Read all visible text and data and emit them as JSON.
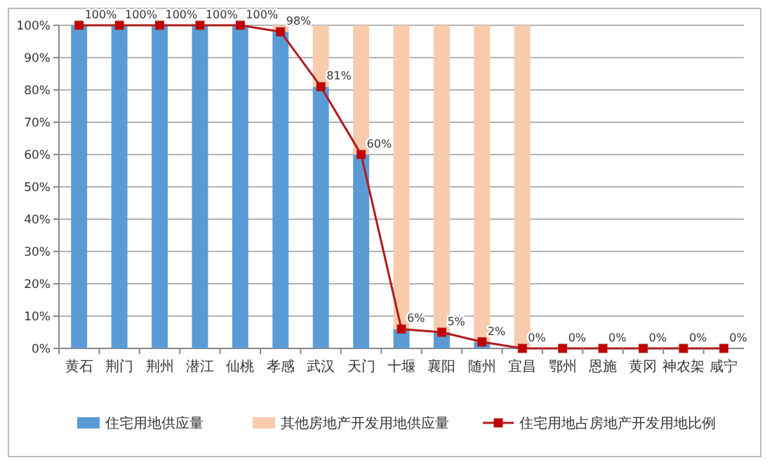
{
  "chart_data": {
    "type": "bar",
    "stacked": true,
    "categories": [
      "黄石",
      "荆门",
      "荆州",
      "潜江",
      "仙桃",
      "孝感",
      "武汉",
      "天门",
      "十堰",
      "襄阳",
      "随州",
      "宜昌",
      "鄂州",
      "恩施",
      "黄冈",
      "神农架",
      "咸宁"
    ],
    "series": [
      {
        "name": "住宅用地供应量",
        "color": "#5b9bd5",
        "values": [
          100,
          100,
          100,
          100,
          100,
          98,
          81,
          60,
          6,
          5,
          2,
          0,
          null,
          null,
          null,
          null,
          null
        ]
      },
      {
        "name": "其他房地产开发用地供应量",
        "color": "#f8cbad",
        "values": [
          0,
          0,
          0,
          0,
          0,
          2,
          19,
          40,
          94,
          95,
          98,
          100,
          null,
          null,
          null,
          null,
          null
        ]
      },
      {
        "name": "住宅用地占房地产开发用地比例",
        "type": "line",
        "color": "#b01c1c",
        "marker": "square",
        "values": [
          100,
          100,
          100,
          100,
          100,
          98,
          81,
          60,
          6,
          5,
          2,
          0,
          0,
          0,
          0,
          0,
          0
        ],
        "value_labels": [
          "100%",
          "100%",
          "100%",
          "100%",
          "100%",
          "98%",
          "81%",
          "60%",
          "6%",
          "5%",
          "2%",
          "0%",
          "0%",
          "0%",
          "0%",
          "0%",
          "0%"
        ]
      }
    ],
    "ylim": [
      0,
      100
    ],
    "yticks": [
      {
        "value": 0,
        "label": "0%"
      },
      {
        "value": 10,
        "label": "10%"
      },
      {
        "value": 20,
        "label": "20%"
      },
      {
        "value": 30,
        "label": "30%"
      },
      {
        "value": 40,
        "label": "40%"
      },
      {
        "value": 50,
        "label": "50%"
      },
      {
        "value": 60,
        "label": "60%"
      },
      {
        "value": 70,
        "label": "70%"
      },
      {
        "value": 80,
        "label": "80%"
      },
      {
        "value": 90,
        "label": "90%"
      },
      {
        "value": 100,
        "label": "100%"
      }
    ],
    "grid": "y",
    "legend": "bottom"
  }
}
